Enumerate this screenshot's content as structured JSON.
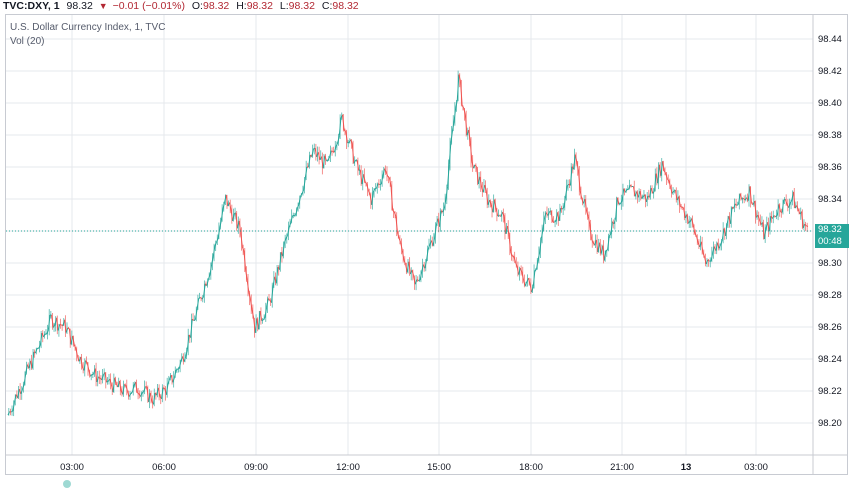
{
  "header": {
    "symbol": "TVC:DXY, 1",
    "last": "98.32",
    "change": "−0.01 (−0.01%)",
    "o_label": "O:",
    "o_value": "98.32",
    "h_label": "H:",
    "h_value": "98.32",
    "l_label": "L:",
    "l_value": "98.32",
    "c_label": "C:",
    "c_value": "98.32"
  },
  "colors": {
    "up": "#26a69a",
    "down": "#ef5350",
    "grid": "#e6e8ec",
    "last_line": "#26a69a"
  },
  "chart_data": {
    "type": "line",
    "title": "U.S. Dollar Currency Index, 1, TVC",
    "volume_label": "Vol (20)",
    "last_price_label": "98.32",
    "countdown_label": "00:48",
    "xlabel": "",
    "ylabel": "",
    "ylim": [
      98.18,
      98.455
    ],
    "y_ticks": [
      "98.44",
      "98.42",
      "98.40",
      "98.38",
      "98.36",
      "98.34",
      "98.32",
      "98.30",
      "98.28",
      "98.26",
      "98.24",
      "98.22",
      "98.20"
    ],
    "x_ticks": [
      "03:00",
      "06:00",
      "09:00",
      "12:00",
      "15:00",
      "18:00",
      "21:00",
      "13",
      "03:00"
    ],
    "last_price": 98.32,
    "grid": true,
    "series": [
      {
        "x": [
          "01:00",
          "01:30",
          "02:00",
          "02:30",
          "03:00",
          "03:30",
          "04:00",
          "04:30",
          "05:00",
          "05:30",
          "06:00",
          "06:30",
          "07:00",
          "07:30",
          "08:00",
          "08:30",
          "09:00",
          "09:30",
          "10:00",
          "10:30",
          "11:00",
          "11:30",
          "12:00",
          "12:30",
          "13:00",
          "13:30",
          "14:00",
          "14:30",
          "15:00",
          "15:30",
          "16:00",
          "16:30",
          "17:00",
          "17:30",
          "18:00",
          "18:30",
          "19:00",
          "19:30",
          "20:00",
          "20:30",
          "21:00",
          "21:30",
          "22:00",
          "22:30",
          "23:00",
          "23:30",
          "00:00",
          "00:30",
          "01:00",
          "01:30",
          "02:00",
          "02:30",
          "03:00",
          "03:30",
          "04:00",
          "04:30"
        ],
        "values": [
          98.205,
          98.225,
          98.245,
          98.265,
          98.26,
          98.24,
          98.23,
          98.225,
          98.22,
          98.222,
          98.215,
          98.222,
          98.24,
          98.27,
          98.3,
          98.34,
          98.32,
          98.26,
          98.275,
          98.31,
          98.34,
          98.37,
          98.36,
          98.39,
          98.36,
          98.34,
          98.36,
          98.31,
          98.285,
          98.31,
          98.335,
          98.415,
          98.36,
          98.34,
          98.33,
          98.295,
          98.285,
          98.33,
          98.33,
          98.365,
          98.32,
          98.305,
          98.34,
          98.345,
          98.34,
          98.362,
          98.34,
          98.325,
          98.3,
          98.315,
          98.335,
          98.345,
          98.318,
          98.335,
          98.34,
          98.32
        ]
      }
    ]
  }
}
